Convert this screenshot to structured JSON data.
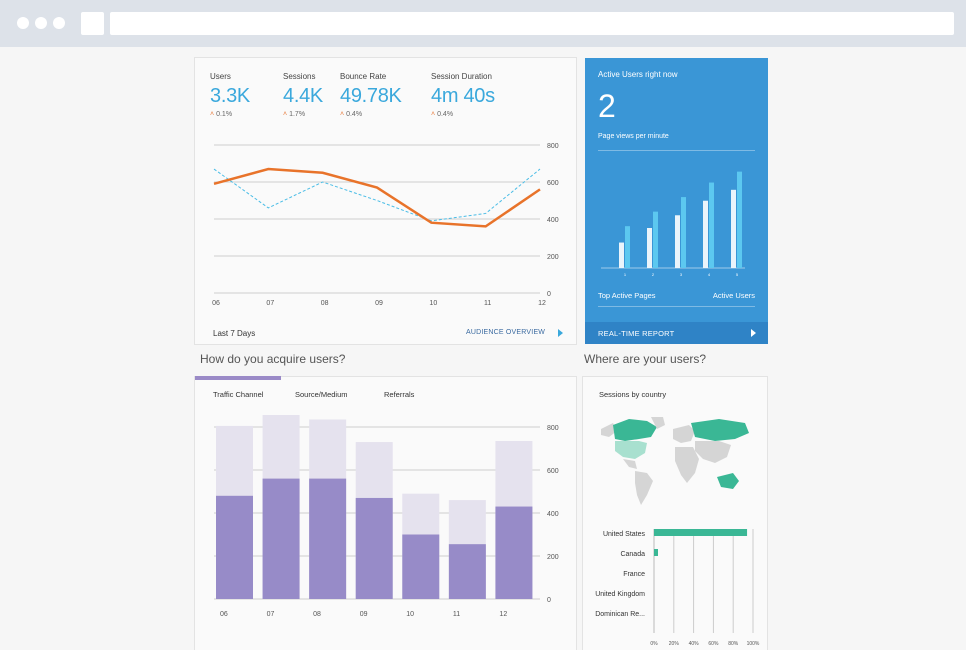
{
  "overview": {
    "metrics": [
      {
        "label": "Users",
        "value": "3.3K",
        "change": "0.1%"
      },
      {
        "label": "Sessions",
        "value": "4.4K",
        "change": "1.7%"
      },
      {
        "label": "Bounce Rate",
        "value": "49.78K",
        "change": "0.4%"
      },
      {
        "label": "Session Duration",
        "value": "4m 40s",
        "change": "0.4%"
      }
    ],
    "footer_left": "Last 7 Days",
    "footer_link": "AUDIENCE OVERVIEW",
    "colors": {
      "primary": "#e8732a",
      "secondary": "#4bbde6"
    }
  },
  "realtime": {
    "title": "Active Users right now",
    "count": "2",
    "subtitle": "Page views per minute",
    "x_ticks": [
      "1",
      "2",
      "3",
      "4",
      "5"
    ],
    "bars_front": [
      28,
      44,
      58,
      74,
      86
    ],
    "bars_back": [
      46,
      62,
      78,
      94,
      106
    ],
    "bar_max": 110,
    "pages_label": "Top Active Pages",
    "users_label": "Active Users",
    "footer": "REAL-TIME REPORT"
  },
  "acquire": {
    "heading": "How do you acquire users?",
    "tabs": [
      "Traffic Channel",
      "Source/Medium",
      "Referrals"
    ]
  },
  "location": {
    "heading": "Where are your users?",
    "title": "Sessions by country",
    "colors": {
      "highlight": "#3ab795",
      "base": "#d5d5d5"
    }
  },
  "chart_data": [
    {
      "type": "line",
      "x": [
        "06",
        "07",
        "08",
        "09",
        "10",
        "11",
        "12"
      ],
      "series": [
        {
          "values": [
            590,
            670,
            650,
            570,
            380,
            360,
            560
          ]
        },
        {
          "values": [
            670,
            460,
            600,
            500,
            390,
            430,
            670
          ]
        }
      ],
      "yticks": [
        "800",
        "600",
        "400",
        "200",
        "0"
      ],
      "ylim": [
        0,
        800
      ],
      "grid": true
    },
    {
      "type": "bar",
      "categories": [
        "06",
        "07",
        "08",
        "09",
        "10",
        "11",
        "12"
      ],
      "series": [
        {
          "values": [
            480,
            560,
            560,
            470,
            300,
            255,
            430
          ]
        },
        {
          "values": [
            805,
            865,
            835,
            730,
            490,
            460,
            735
          ]
        }
      ],
      "yticks": [
        "800",
        "600",
        "400",
        "200",
        "0"
      ],
      "ylim": [
        0,
        800
      ],
      "grid": true
    },
    {
      "type": "bar",
      "orientation": "horizontal",
      "categories": [
        "United States",
        "Canada",
        "France",
        "United Kingdom",
        "Dominican Re..."
      ],
      "values": [
        94,
        2,
        0,
        0,
        0
      ],
      "xticks": [
        "0%",
        "20%",
        "40%",
        "60%",
        "80%",
        "100%"
      ],
      "xlim": [
        0,
        100
      ]
    }
  ]
}
